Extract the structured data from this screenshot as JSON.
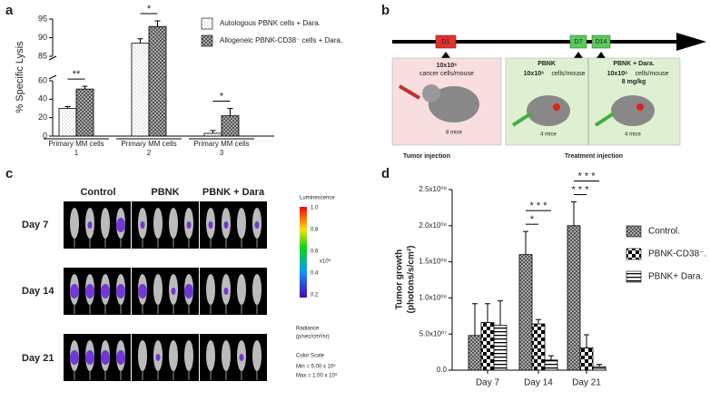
{
  "panel_labels": [
    "a",
    "b",
    "c",
    "d"
  ],
  "chart_data": [
    {
      "type": "bar",
      "ylabel": "% Specific Lysis",
      "categories": [
        "Primary MM cells 1",
        "Primary MM cells 2",
        "Primary MM cells 3"
      ],
      "series": [
        {
          "name": "Autologous PBNK cells + Dara.",
          "color": "#ffffff",
          "pattern": "dots",
          "values": [
            30,
            88.5,
            3
          ],
          "errors": [
            2,
            1.2,
            3
          ]
        },
        {
          "name": "Allogeneic PBNK-CD38⁻ cells + Dara.",
          "color": "#9a9a9a",
          "pattern": "checker",
          "values": [
            51,
            93,
            22
          ],
          "errors": [
            3,
            1.5,
            8
          ]
        }
      ],
      "ylim": [
        0,
        95
      ],
      "axis_break": [
        60,
        85
      ],
      "yticks": [
        0,
        20,
        40,
        60,
        85,
        90,
        95
      ],
      "annotations": [
        {
          "text": "**",
          "category": 0,
          "series": [
            0,
            1
          ]
        },
        {
          "text": "*",
          "category": 1,
          "series": [
            0,
            1
          ]
        },
        {
          "text": "*",
          "category": 2,
          "series": [
            0,
            1
          ]
        }
      ]
    },
    {
      "type": "bar",
      "ylabel": [
        "Tumor growth",
        "(photons/s/cm²)"
      ],
      "categories": [
        "Day 7",
        "Day 14",
        "Day 21"
      ],
      "series": [
        {
          "name": "Control.",
          "color": "#777777",
          "pattern": "checker",
          "values": [
            48000000,
            160000000,
            200000000
          ],
          "errors": [
            44000000,
            32000000,
            33000000
          ]
        },
        {
          "name": "PBNK-CD38⁻.",
          "color": "#000000",
          "pattern": "bigchecker",
          "values": [
            66000000,
            64000000,
            31000000
          ],
          "errors": [
            26000000,
            6000000,
            18000000
          ]
        },
        {
          "name": "PBNK+ Dara.",
          "color": "#000000",
          "pattern": "hlines",
          "values": [
            62000000,
            14000000,
            5000000
          ],
          "errors": [
            34000000,
            6000000,
            3000000
          ]
        }
      ],
      "ylim": [
        0,
        250000000
      ],
      "yticks": [
        {
          "value": 0,
          "label": "0.0"
        },
        {
          "value": 50000000,
          "label": "5.0x10⁰⁷"
        },
        {
          "value": 100000000,
          "label": "1.0x10⁰⁸"
        },
        {
          "value": 150000000,
          "label": "1.5x10⁰⁸"
        },
        {
          "value": 200000000,
          "label": "2.0x10⁰⁸"
        },
        {
          "value": 250000000,
          "label": "2.5x10⁰⁸"
        }
      ],
      "annotations": [
        {
          "text": "*",
          "category": 1,
          "series": [
            0,
            1
          ]
        },
        {
          "text": "* * *",
          "category": 1,
          "series": [
            0,
            2
          ]
        },
        {
          "text": "* * *",
          "category": 2,
          "series": [
            0,
            1
          ]
        },
        {
          "text": "* * *",
          "category": 2,
          "series": [
            0,
            2
          ]
        }
      ]
    }
  ],
  "diagram": {
    "days": [
      "D1",
      "D7",
      "D14"
    ],
    "tumor_box": {
      "dose": "10x10⁶",
      "unit": "cancer cells/mouse",
      "mice": "8 mice"
    },
    "pbnk_box": {
      "title": "PBNK",
      "dose": "10x10⁶",
      "unit": "cells/mouse",
      "mice": "4 mice"
    },
    "dara_box": {
      "title": "PBNK + Dara.",
      "dose": "10x10⁶",
      "unit": "cells/mouse",
      "drug": "8 mg/kg",
      "mice": "4 mice"
    },
    "captions": [
      "Tumor injection",
      "Treatment injection"
    ]
  },
  "imaging": {
    "columns": [
      "Control",
      "PBNK",
      "PBNK + Dara"
    ],
    "rows": [
      "Day 7",
      "Day 14",
      "Day 21"
    ],
    "colorbar_title": "Luminescence",
    "colorbar_ticks": [
      "1.0",
      "0.8",
      "0.6",
      "0.4",
      "0.2"
    ],
    "colorbar_unit": "x10⁹",
    "radiance": [
      "Radiance",
      "(p/sec/cm²/sr)"
    ],
    "scale": [
      "Color Scale",
      "Min = 5.00 x 10⁶",
      "Max = 1.00 x 10⁹"
    ]
  }
}
